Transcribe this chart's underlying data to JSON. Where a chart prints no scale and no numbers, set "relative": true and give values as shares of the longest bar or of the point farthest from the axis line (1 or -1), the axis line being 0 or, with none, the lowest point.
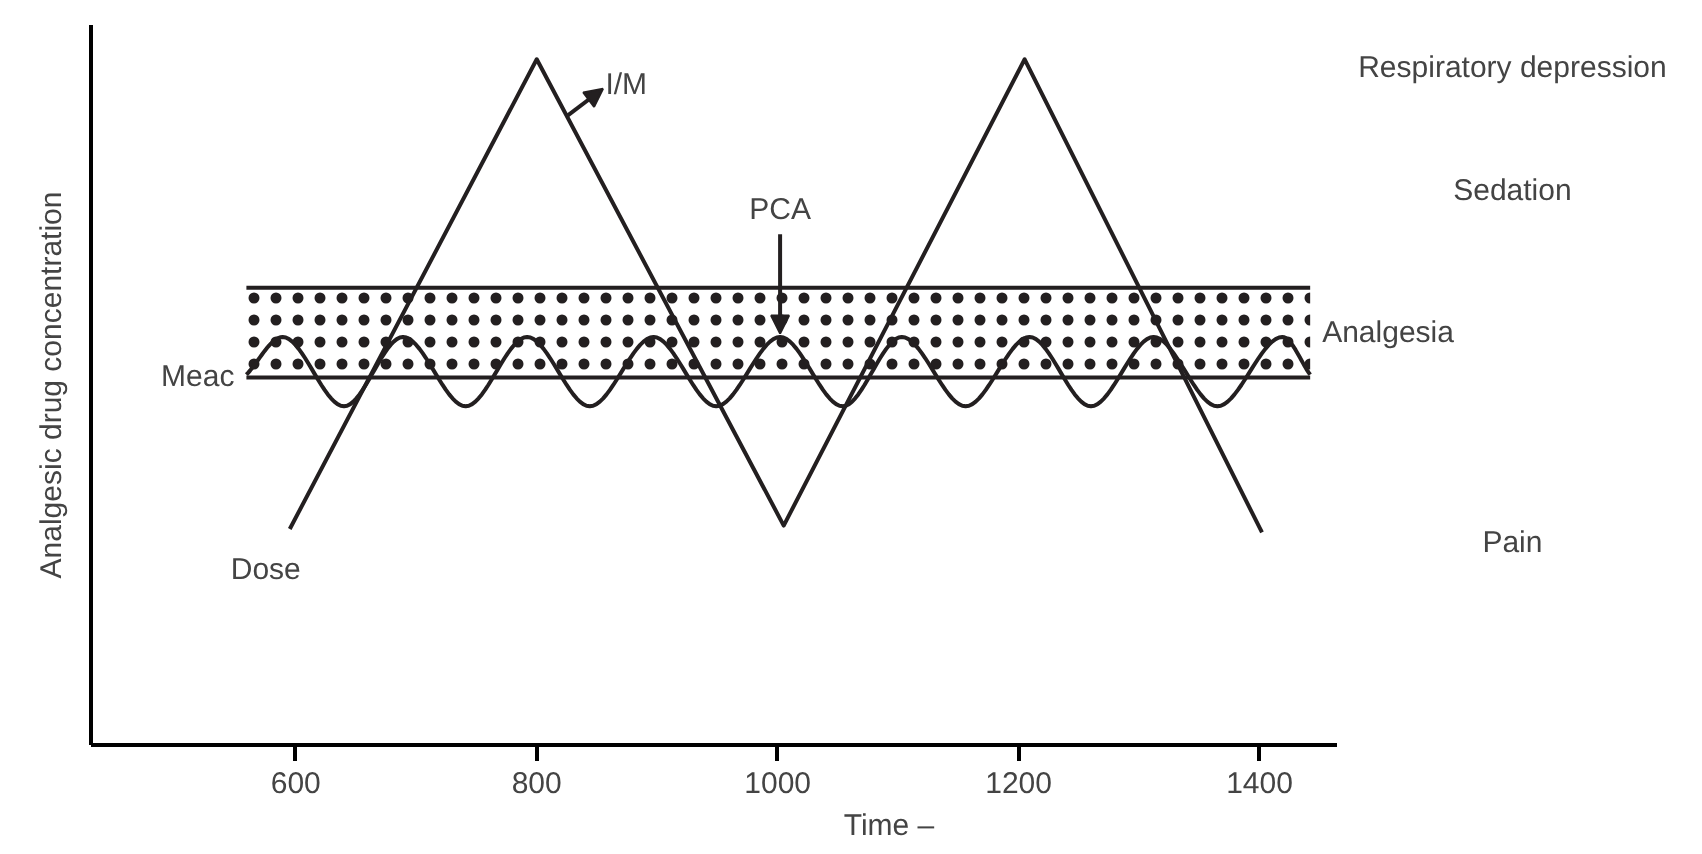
{
  "chart_data": {
    "type": "line",
    "relative": true,
    "xlabel": "Time –",
    "ylabel": "Analgesic drug concentration",
    "xlim": [
      430,
      1465
    ],
    "xticks": [
      600,
      800,
      1000,
      1200,
      1400
    ],
    "series": [
      {
        "color": "#231f20",
        "x": [
          595,
          800,
          1005,
          1205,
          1402
        ],
        "values": [
          0.315,
          1,
          0.32,
          1,
          0.31
        ]
      },
      {
        "name": "PCA",
        "color": "#231f20",
        "x": [
          559,
          589,
          640,
          689,
          741,
          792,
          844,
          897,
          949,
          1002,
          1054,
          1103,
          1156,
          1209,
          1260,
          1312,
          1365,
          1419,
          1442
        ],
        "values": [
          0.54,
          0.595,
          0.494,
          0.595,
          0.494,
          0.595,
          0.494,
          0.595,
          0.494,
          0.595,
          0.494,
          0.595,
          0.494,
          0.595,
          0.494,
          0.595,
          0.494,
          0.595,
          0.54
        ]
      }
    ],
    "bands": [
      {
        "axis": "y",
        "from": 0.536,
        "to": 0.667,
        "label": "Analgesia",
        "color": "#231f20"
      }
    ],
    "ref_lines": [
      {
        "axis": "y",
        "value": 0.536,
        "label": "Meac"
      },
      {
        "axis": "y",
        "value": 0.667
      }
    ],
    "annotations": [
      "Dose",
      "Respiratory depression",
      "Sedation",
      "Pain",
      {
        "text": "I/M",
        "x": 825,
        "y": 0.917
      }
    ],
    "legend": false,
    "grid": false,
    "marker": "none",
    "line_style": "solid"
  }
}
